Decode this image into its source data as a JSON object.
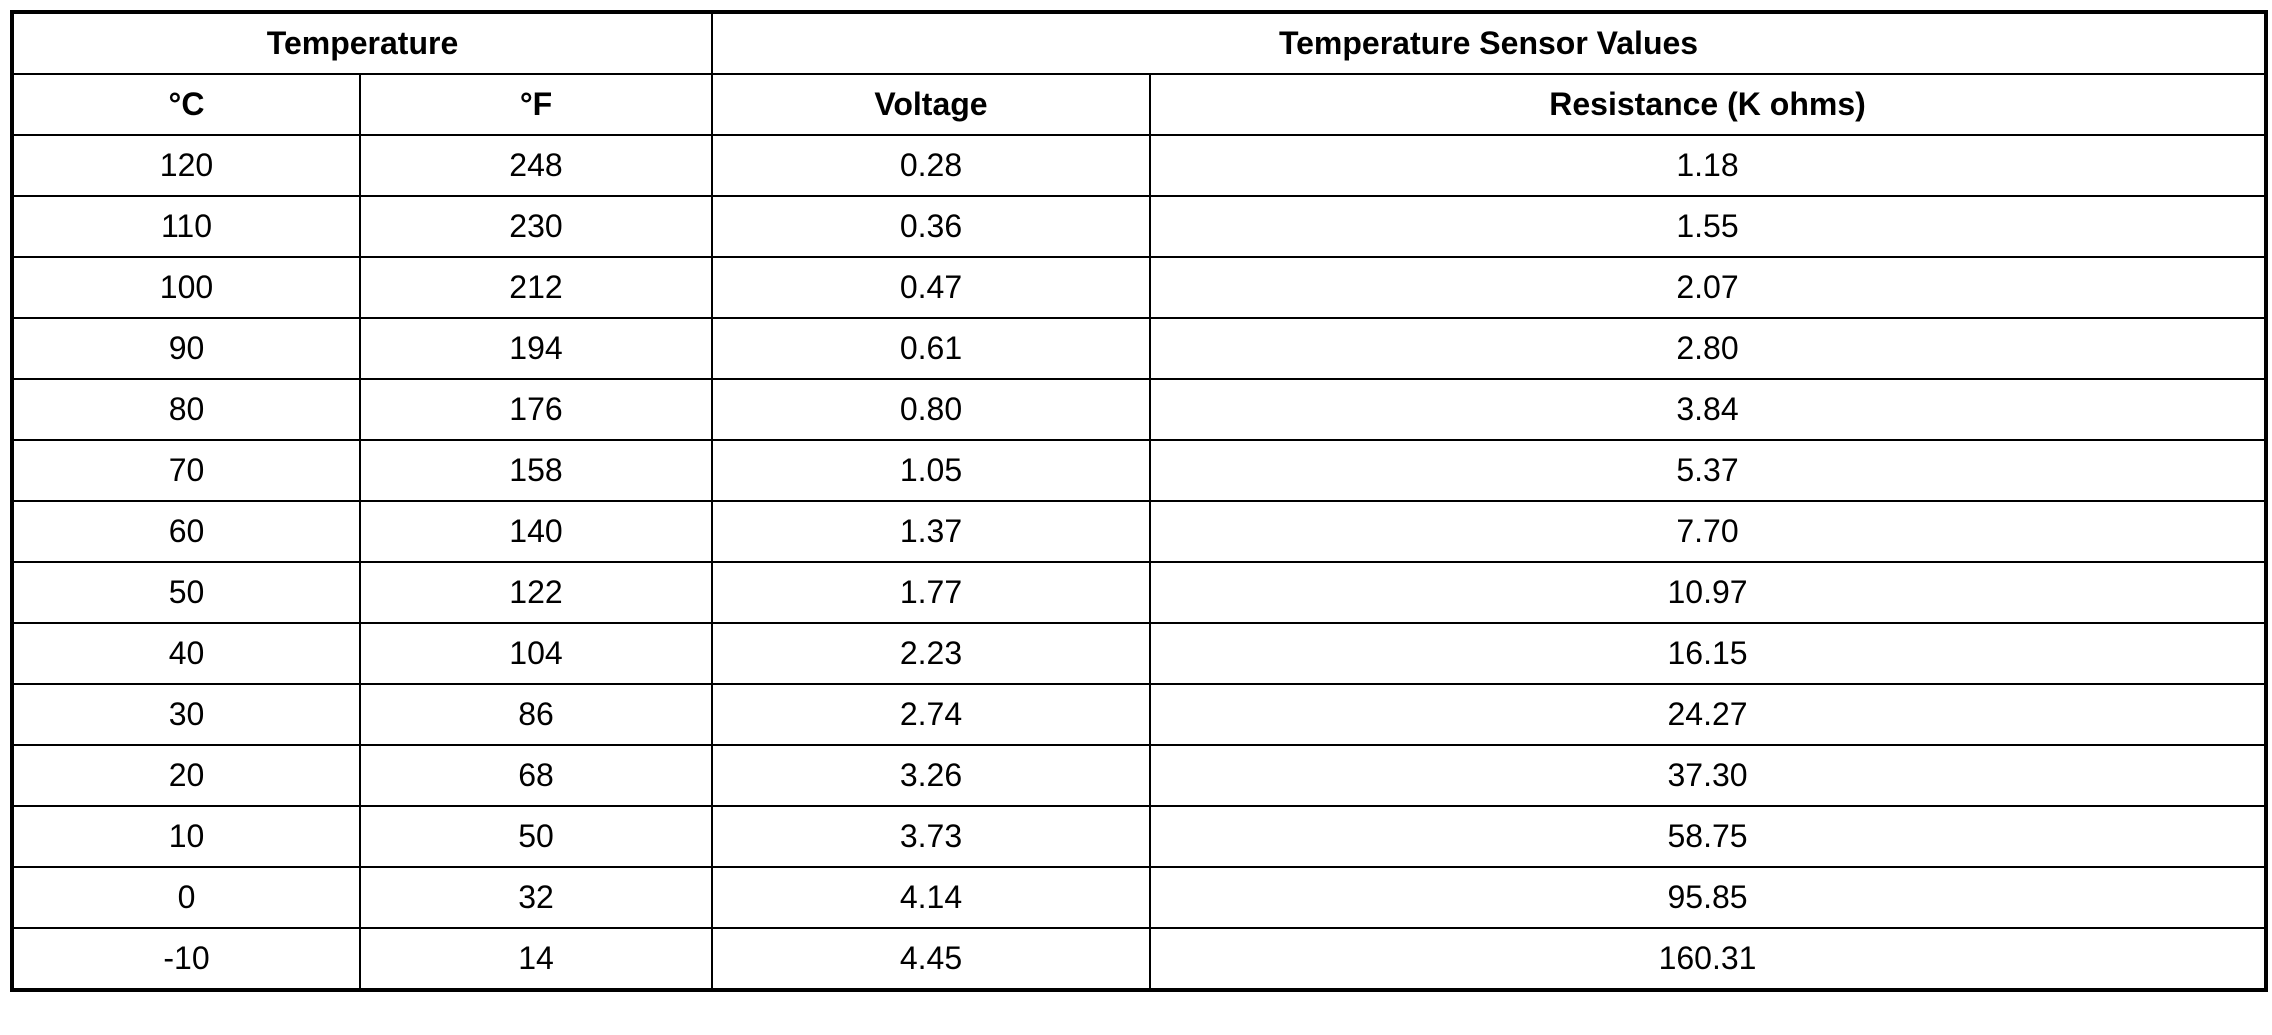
{
  "table": {
    "group_headers": [
      "Temperature",
      "Temperature Sensor Values"
    ],
    "headers": [
      "°C",
      "°F",
      "Voltage",
      "Resistance (K ohms)"
    ],
    "rows": [
      [
        "120",
        "248",
        "0.28",
        "1.18"
      ],
      [
        "110",
        "230",
        "0.36",
        "1.55"
      ],
      [
        "100",
        "212",
        "0.47",
        "2.07"
      ],
      [
        "90",
        "194",
        "0.61",
        "2.80"
      ],
      [
        "80",
        "176",
        "0.80",
        "3.84"
      ],
      [
        "70",
        "158",
        "1.05",
        "5.37"
      ],
      [
        "60",
        "140",
        "1.37",
        "7.70"
      ],
      [
        "50",
        "122",
        "1.77",
        "10.97"
      ],
      [
        "40",
        "104",
        "2.23",
        "16.15"
      ],
      [
        "30",
        "86",
        "2.74",
        "24.27"
      ],
      [
        "20",
        "68",
        "3.26",
        "37.30"
      ],
      [
        "10",
        "50",
        "3.73",
        "58.75"
      ],
      [
        "0",
        "32",
        "4.14",
        "95.85"
      ],
      [
        "-10",
        "14",
        "4.45",
        "160.31"
      ]
    ]
  }
}
